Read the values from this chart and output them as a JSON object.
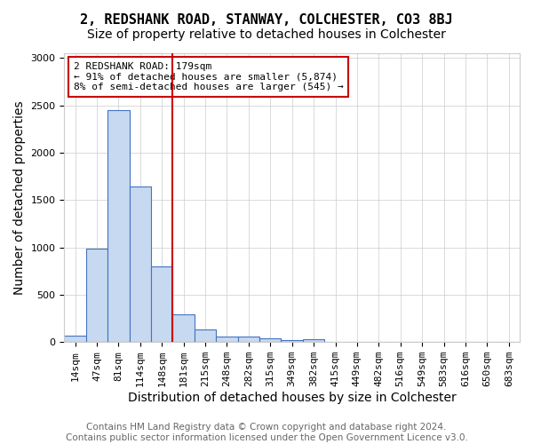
{
  "title": "2, REDSHANK ROAD, STANWAY, COLCHESTER, CO3 8BJ",
  "subtitle": "Size of property relative to detached houses in Colchester",
  "xlabel": "Distribution of detached houses by size in Colchester",
  "ylabel": "Number of detached properties",
  "footer_line1": "Contains HM Land Registry data © Crown copyright and database right 2024.",
  "footer_line2": "Contains public sector information licensed under the Open Government Licence v3.0.",
  "annotation_line1": "2 REDSHANK ROAD: 179sqm",
  "annotation_line2": "← 91% of detached houses are smaller (5,874)",
  "annotation_line3": "8% of semi-detached houses are larger (545) →",
  "bin_labels": [
    "14sqm",
    "47sqm",
    "81sqm",
    "114sqm",
    "148sqm",
    "181sqm",
    "215sqm",
    "248sqm",
    "282sqm",
    "315sqm",
    "349sqm",
    "382sqm",
    "415sqm",
    "449sqm",
    "482sqm",
    "516sqm",
    "549sqm",
    "583sqm",
    "616sqm",
    "650sqm",
    "683sqm"
  ],
  "bar_heights": [
    65,
    990,
    2450,
    1640,
    800,
    290,
    130,
    60,
    55,
    35,
    25,
    30,
    5,
    0,
    0,
    0,
    0,
    0,
    0,
    0,
    0
  ],
  "bar_color": "#c6d9f0",
  "bar_edge_color": "#4472c4",
  "redline_index": 5,
  "ylim": [
    0,
    3050
  ],
  "annotation_box_color": "#ffffff",
  "annotation_box_edge_color": "#cc0000",
  "title_fontsize": 11,
  "subtitle_fontsize": 10,
  "axis_label_fontsize": 10,
  "tick_fontsize": 8,
  "annotation_fontsize": 8,
  "footer_fontsize": 7.5
}
